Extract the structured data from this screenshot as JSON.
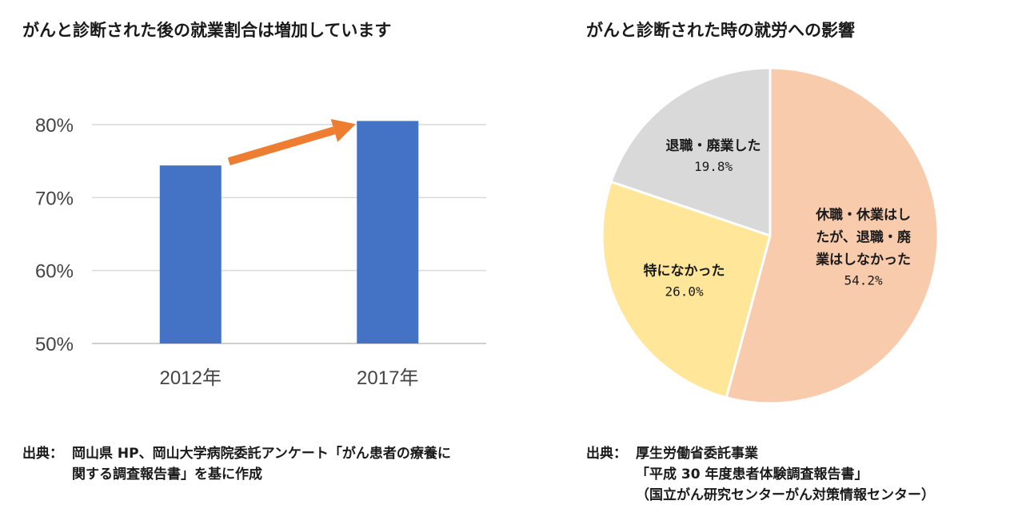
{
  "chart_data": [
    {
      "type": "bar",
      "title": "がんと診断された後の就業割合は増加しています",
      "categories": [
        "2012年",
        "2017年"
      ],
      "values": [
        74.4,
        80.5
      ],
      "ylim": [
        50,
        80
      ],
      "yticks": [
        "50%",
        "60%",
        "70%",
        "80%"
      ],
      "grid": true,
      "bar_color": "#4472C4",
      "annotation": "increase-arrow",
      "arrow_color": "#ED7D31"
    },
    {
      "type": "pie",
      "title": "がんと診断された時の就労への影響",
      "slices": [
        {
          "label_lines": [
            "休職・休業はし",
            "たが、退職・廃",
            "業はしなかった"
          ],
          "value": 54.2,
          "pct": "54.2%",
          "color": "#F8CBAD"
        },
        {
          "label_lines": [
            "特になかった"
          ],
          "value": 26.0,
          "pct": "26.0%",
          "color": "#FFE699"
        },
        {
          "label_lines": [
            "退職・廃業した"
          ],
          "value": 19.8,
          "pct": "19.8%",
          "color": "#D9D9D9"
        }
      ]
    }
  ],
  "sources": {
    "left": {
      "key": "出典：",
      "lines": [
        "岡山県 HP、岡山大学病院委託アンケート「がん患者の療養に",
        "関する調査報告書」を基に作成"
      ]
    },
    "right": {
      "key": "出典：",
      "lines": [
        "厚生労働省委託事業",
        "「平成 30 年度患者体験調査報告書」",
        "（国立がん研究センターがん対策情報センター）"
      ]
    }
  }
}
